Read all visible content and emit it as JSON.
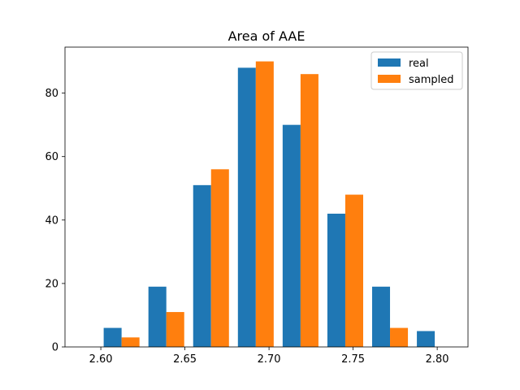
{
  "chart_data": {
    "type": "bar",
    "title": "Area of AAE",
    "xlabel": "",
    "ylabel": "",
    "xlim": [
      2.5787,
      2.8183
    ],
    "ylim": [
      0,
      94.5
    ],
    "x_ticks": [
      "2.60",
      "2.65",
      "2.70",
      "2.75",
      "2.80"
    ],
    "x_tick_values": [
      2.6,
      2.65,
      2.7,
      2.75,
      2.8
    ],
    "y_ticks": [
      "0",
      "20",
      "40",
      "60",
      "80"
    ],
    "y_tick_values": [
      0,
      20,
      40,
      60,
      80
    ],
    "bin_starts": [
      2.6017,
      2.6283,
      2.6549,
      2.6815,
      2.7081,
      2.7347,
      2.7613,
      2.7879
    ],
    "bin_width": 0.0266,
    "series": [
      {
        "name": "real",
        "color": "#1f77b4",
        "values": [
          6,
          19,
          51,
          88,
          70,
          42,
          19,
          5
        ]
      },
      {
        "name": "sampled",
        "color": "#ff7f0e",
        "values": [
          3,
          11,
          56,
          90,
          86,
          48,
          6,
          0
        ]
      }
    ],
    "legend_position": "top-right",
    "grid": false
  }
}
